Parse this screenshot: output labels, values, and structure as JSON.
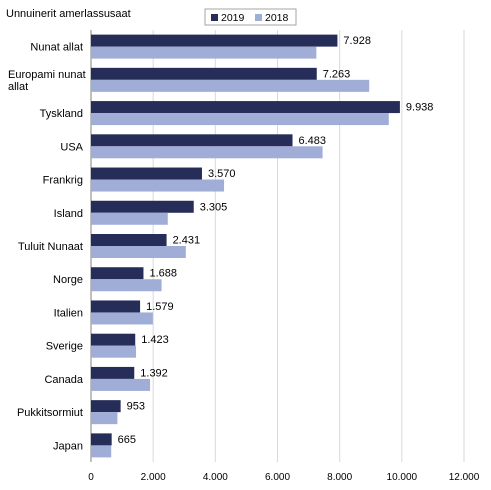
{
  "chart_data": {
    "type": "bar",
    "orientation": "horizontal",
    "ylabel": "Unnuinerit amerlassusaat",
    "categories": [
      [
        "Nunat allat"
      ],
      [
        "Europami nunat",
        "allat"
      ],
      [
        "Tyskland"
      ],
      [
        "USA"
      ],
      [
        "Frankrig"
      ],
      [
        "Island"
      ],
      [
        "Tuluit Nunaat"
      ],
      [
        "Norge"
      ],
      [
        "Italien"
      ],
      [
        "Sverige"
      ],
      [
        "Canada"
      ],
      [
        "Pukkitsormiut"
      ],
      [
        "Japan"
      ]
    ],
    "series": [
      {
        "name": "2019",
        "color": "#262d59",
        "values": [
          7928,
          7263,
          9938,
          6483,
          3570,
          3305,
          2431,
          1688,
          1579,
          1423,
          1392,
          953,
          665
        ],
        "data_labels": [
          "7.928",
          "7.263",
          "9.938",
          "6.483",
          "3.570",
          "3.305",
          "2.431",
          "1.688",
          "1.579",
          "1.423",
          "1.392",
          "953",
          "665"
        ]
      },
      {
        "name": "2018",
        "color": "#a0add6",
        "values": [
          7250,
          8950,
          9580,
          7450,
          4280,
          2470,
          3050,
          2270,
          1990,
          1450,
          1900,
          850,
          650
        ]
      }
    ],
    "xlim": [
      0,
      12000
    ],
    "xticks": [
      0,
      2000,
      4000,
      6000,
      8000,
      10000,
      12000
    ],
    "xtick_labels": [
      "0",
      "2.000",
      "4.000",
      "6.000",
      "8.000",
      "10.000",
      "12.000"
    ],
    "grid": "vertical",
    "legend_position": "top"
  }
}
